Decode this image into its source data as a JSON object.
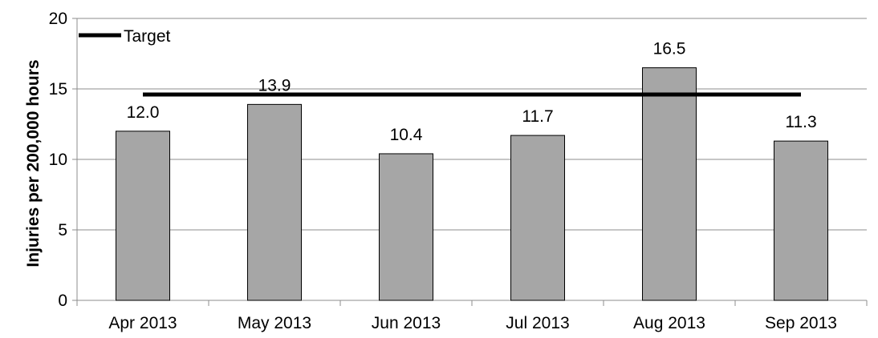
{
  "chart_data": {
    "type": "bar",
    "categories": [
      "Apr 2013",
      "May 2013",
      "Jun 2013",
      "Jul 2013",
      "Aug 2013",
      "Sep 2013"
    ],
    "series": [
      {
        "values": [
          12.0,
          13.9,
          10.4,
          11.7,
          16.5,
          11.3
        ],
        "color": "#a6a6a6",
        "data_labels": [
          "12.0",
          "13.9",
          "10.4",
          "11.7",
          "16.5",
          "11.3"
        ]
      }
    ],
    "target": {
      "name": "Target",
      "value": 14.6,
      "color": "#000000"
    },
    "title": "",
    "xlabel": "",
    "ylabel": "Injuries per 200,000 hours",
    "ylim": [
      0,
      20
    ],
    "yticks": [
      0,
      5,
      10,
      15,
      20
    ],
    "grid": true,
    "legend": {
      "position": "top-left",
      "entries": [
        "Target"
      ]
    }
  }
}
